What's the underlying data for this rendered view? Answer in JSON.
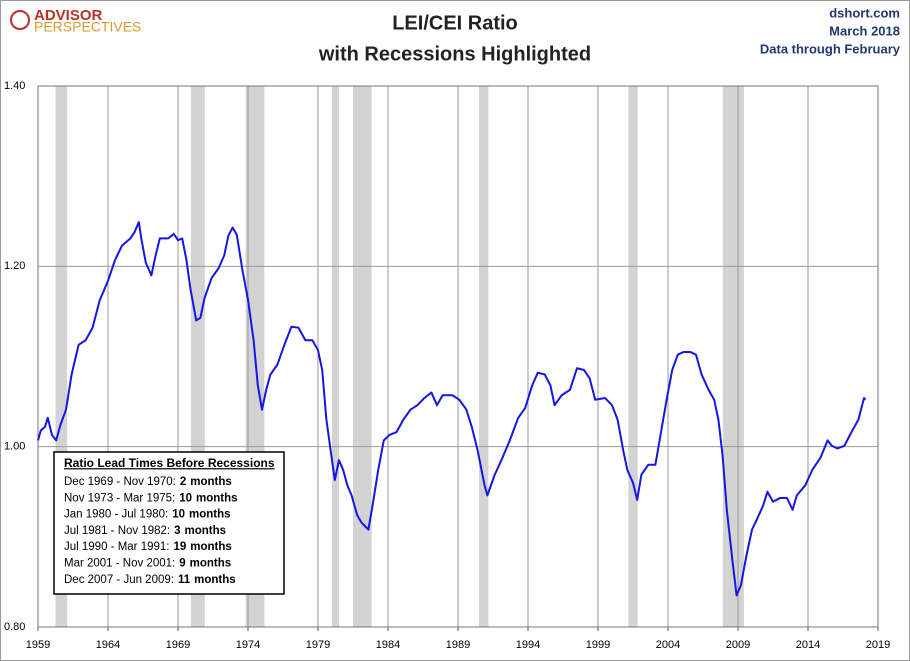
{
  "chart_data": {
    "type": "line",
    "title": "LEI/CEI Ratio",
    "subtitle": "with Recessions Highlighted",
    "logo": {
      "top": "ADVISOR",
      "bottom": "PERSPECTIVES"
    },
    "source": "dshort.com",
    "date": "March 2018",
    "data_note": "Data through February",
    "xlim": [
      1959,
      2019
    ],
    "xticks": [
      1959,
      1964,
      1969,
      1974,
      1979,
      1984,
      1989,
      1994,
      1999,
      2004,
      2009,
      2014,
      2019
    ],
    "ylim": [
      0.8,
      1.4
    ],
    "yticks": [
      {
        "value": 0.8,
        "label": "0.80"
      },
      {
        "value": 1.0,
        "label": "1.00"
      },
      {
        "value": 1.2,
        "label": "1.20"
      },
      {
        "value": 1.4,
        "label": "1.40"
      }
    ],
    "grid": true,
    "recessions": [
      {
        "start": 1960.25,
        "end": 1961.08
      },
      {
        "start": 1969.92,
        "end": 1970.92
      },
      {
        "start": 1973.83,
        "end": 1975.17
      },
      {
        "start": 1980.0,
        "end": 1980.5
      },
      {
        "start": 1981.5,
        "end": 1982.83
      },
      {
        "start": 1990.5,
        "end": 1991.17
      },
      {
        "start": 2001.17,
        "end": 2001.83
      },
      {
        "start": 2007.92,
        "end": 2009.42
      }
    ],
    "recession_color": "#d3d3d3",
    "series": [
      {
        "name": "LEI/CEI Ratio",
        "color": "#1515e6",
        "x": [
          1959.0,
          1959.2,
          1959.5,
          1959.7,
          1960.0,
          1960.3,
          1960.6,
          1961.0,
          1961.4,
          1961.9,
          1962.4,
          1962.9,
          1963.4,
          1964.0,
          1964.5,
          1965.0,
          1965.6,
          1965.9,
          1966.2,
          1966.4,
          1966.7,
          1967.1,
          1967.4,
          1967.7,
          1968.3,
          1968.7,
          1969.0,
          1969.3,
          1969.6,
          1969.9,
          1970.3,
          1970.6,
          1970.9,
          1971.4,
          1971.9,
          1972.3,
          1972.6,
          1972.9,
          1973.2,
          1973.6,
          1974.0,
          1974.4,
          1974.7,
          1975.0,
          1975.3,
          1975.6,
          1976.1,
          1976.6,
          1977.1,
          1977.6,
          1978.1,
          1978.6,
          1979.0,
          1979.3,
          1979.6,
          1979.9,
          1980.2,
          1980.5,
          1980.8,
          1981.1,
          1981.4,
          1981.8,
          1982.1,
          1982.6,
          1982.9,
          1983.3,
          1983.7,
          1984.1,
          1984.6,
          1985.1,
          1985.6,
          1986.1,
          1986.6,
          1987.1,
          1987.5,
          1987.9,
          1988.6,
          1989.1,
          1989.6,
          1990.0,
          1990.4,
          1990.9,
          1991.1,
          1991.6,
          1992.1,
          1992.7,
          1993.3,
          1993.8,
          1994.3,
          1994.7,
          1995.2,
          1995.6,
          1995.9,
          1996.4,
          1997.0,
          1997.5,
          1998.0,
          1998.4,
          1998.8,
          1999.5,
          2000.0,
          2000.4,
          2000.8,
          2001.1,
          2001.5,
          2001.8,
          2002.1,
          2002.6,
          2003.1,
          2003.4,
          2003.9,
          2004.3,
          2004.7,
          2005.1,
          2005.6,
          2006.0,
          2006.4,
          2006.9,
          2007.3,
          2007.6,
          2007.9,
          2008.2,
          2008.6,
          2008.9,
          2009.2,
          2009.6,
          2010.0,
          2010.4,
          2010.8,
          2011.1,
          2011.5,
          2012.0,
          2012.5,
          2012.9,
          2013.2,
          2013.8,
          2014.3,
          2014.9,
          2015.4,
          2015.7,
          2016.1,
          2016.6,
          2017.1,
          2017.6,
          2018.0,
          2018.1
        ],
        "values": [
          1.007,
          1.018,
          1.022,
          1.032,
          1.013,
          1.007,
          1.024,
          1.041,
          1.08,
          1.113,
          1.118,
          1.132,
          1.162,
          1.184,
          1.207,
          1.223,
          1.231,
          1.238,
          1.249,
          1.229,
          1.204,
          1.19,
          1.212,
          1.231,
          1.231,
          1.236,
          1.229,
          1.231,
          1.207,
          1.174,
          1.14,
          1.143,
          1.165,
          1.187,
          1.198,
          1.212,
          1.234,
          1.243,
          1.235,
          1.196,
          1.163,
          1.118,
          1.068,
          1.041,
          1.063,
          1.08,
          1.091,
          1.113,
          1.133,
          1.132,
          1.118,
          1.118,
          1.107,
          1.085,
          1.03,
          0.996,
          0.963,
          0.985,
          0.974,
          0.957,
          0.946,
          0.924,
          0.916,
          0.908,
          0.935,
          0.974,
          1.007,
          1.013,
          1.016,
          1.03,
          1.041,
          1.046,
          1.054,
          1.06,
          1.046,
          1.057,
          1.057,
          1.052,
          1.041,
          1.021,
          0.996,
          0.957,
          0.946,
          0.968,
          0.985,
          1.007,
          1.032,
          1.043,
          1.068,
          1.082,
          1.08,
          1.068,
          1.046,
          1.057,
          1.063,
          1.087,
          1.085,
          1.076,
          1.052,
          1.054,
          1.046,
          1.03,
          0.996,
          0.974,
          0.96,
          0.941,
          0.969,
          0.98,
          0.98,
          1.007,
          1.052,
          1.085,
          1.102,
          1.105,
          1.105,
          1.102,
          1.08,
          1.063,
          1.052,
          1.03,
          0.99,
          0.93,
          0.874,
          0.835,
          0.846,
          0.879,
          0.908,
          0.921,
          0.935,
          0.95,
          0.939,
          0.943,
          0.943,
          0.93,
          0.946,
          0.957,
          0.974,
          0.988,
          1.007,
          1.001,
          0.998,
          1.001,
          1.016,
          1.03,
          1.054,
          1.052
        ]
      }
    ],
    "annotation": {
      "title": "Ratio Lead Times Before Recessions",
      "rows": [
        {
          "range": "Dec 1969 - Nov 1970:",
          "lead": 2,
          "unit": "months"
        },
        {
          "range": "Nov 1973 - Mar 1975:",
          "lead": 10,
          "unit": "months"
        },
        {
          "range": "Jan 1980 - Jul 1980:",
          "lead": 10,
          "unit": "months"
        },
        {
          "range": "Jul 1981 - Nov 1982:",
          "lead": 3,
          "unit": "months"
        },
        {
          "range": "Jul 1990 - Mar 1991:",
          "lead": 19,
          "unit": "months"
        },
        {
          "range": "Mar 2001 - Nov 2001:",
          "lead": 9,
          "unit": "months"
        },
        {
          "range": "Dec 2007 - Jun 2009:",
          "lead": 11,
          "unit": "months"
        }
      ]
    }
  }
}
